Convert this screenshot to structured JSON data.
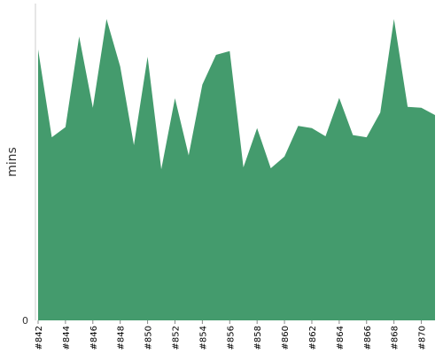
{
  "chart_data": {
    "type": "area",
    "title": "",
    "xlabel": "",
    "ylabel": "mins",
    "y_tick_labels": [
      "0"
    ],
    "ylim": [
      0,
      100
    ],
    "grid": false,
    "legend": "none",
    "color": "#449b6d",
    "x": [
      "#842",
      "#843",
      "#844",
      "#845",
      "#846",
      "#847",
      "#848",
      "#849",
      "#850",
      "#851",
      "#852",
      "#853",
      "#854",
      "#855",
      "#856",
      "#857",
      "#858",
      "#859",
      "#860",
      "#861",
      "#862",
      "#863",
      "#864",
      "#865",
      "#866",
      "#867",
      "#868",
      "#869",
      "#870",
      "#871"
    ],
    "x_tick_labels": [
      "#842",
      "#844",
      "#846",
      "#848",
      "#850",
      "#852",
      "#854",
      "#856",
      "#858",
      "#860",
      "#862",
      "#864",
      "#866",
      "#868",
      "#870"
    ],
    "values": [
      85.5,
      57.8,
      61.0,
      89.6,
      67.1,
      95.1,
      80.1,
      55.3,
      83.2,
      47.7,
      70.1,
      52.1,
      74.4,
      83.8,
      85.0,
      48.3,
      60.7,
      48.0,
      51.7,
      61.4,
      60.7,
      58.1,
      70.2,
      58.5,
      57.8,
      65.6,
      95.1,
      67.4,
      67.1,
      64.8
    ]
  }
}
